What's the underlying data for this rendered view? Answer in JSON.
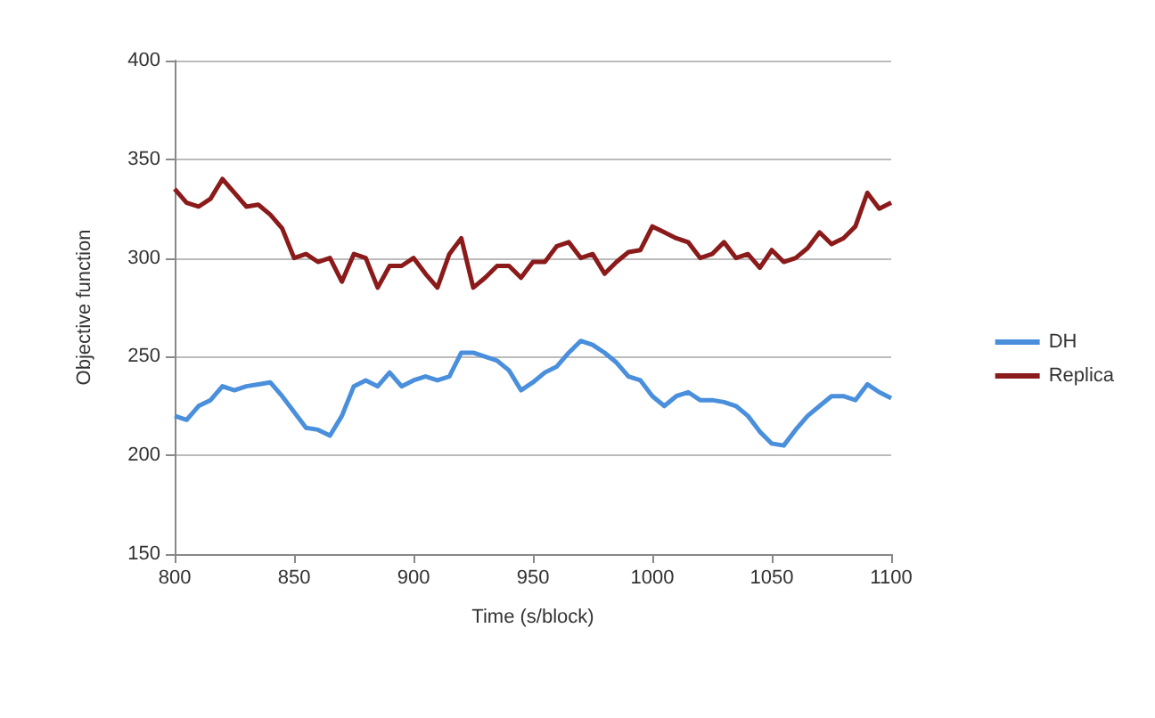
{
  "chart_data": {
    "type": "line",
    "xlabel": "Time (s/block)",
    "ylabel": "Objective function",
    "x": [
      800,
      805,
      810,
      815,
      820,
      825,
      830,
      835,
      840,
      845,
      850,
      855,
      860,
      865,
      870,
      875,
      880,
      885,
      890,
      895,
      900,
      905,
      910,
      915,
      920,
      925,
      930,
      935,
      940,
      945,
      950,
      955,
      960,
      965,
      970,
      975,
      980,
      985,
      990,
      995,
      1000,
      1005,
      1010,
      1015,
      1020,
      1025,
      1030,
      1035,
      1040,
      1045,
      1050,
      1055,
      1060,
      1065,
      1070,
      1075,
      1080,
      1085,
      1090,
      1095,
      1100
    ],
    "series": [
      {
        "name": "DH",
        "color": "#4a8fdc",
        "values": [
          220,
          218,
          225,
          228,
          235,
          233,
          235,
          236,
          237,
          230,
          222,
          214,
          213,
          210,
          220,
          235,
          238,
          235,
          242,
          235,
          238,
          240,
          238,
          240,
          252,
          252,
          250,
          248,
          243,
          233,
          237,
          242,
          245,
          252,
          258,
          256,
          252,
          247,
          240,
          238,
          230,
          225,
          230,
          232,
          228,
          228,
          227,
          225,
          220,
          212,
          206,
          205,
          213,
          220,
          225,
          230,
          230,
          228,
          236,
          232,
          229
        ]
      },
      {
        "name": "Replica",
        "color": "#8b1a1a",
        "values": [
          335,
          328,
          326,
          330,
          340,
          333,
          326,
          327,
          322,
          315,
          300,
          302,
          298,
          300,
          288,
          302,
          300,
          285,
          296,
          296,
          300,
          292,
          285,
          302,
          310,
          285,
          290,
          296,
          296,
          290,
          298,
          298,
          306,
          308,
          300,
          302,
          292,
          298,
          303,
          304,
          316,
          313,
          310,
          308,
          300,
          302,
          308,
          300,
          302,
          295,
          304,
          298,
          300,
          305,
          313,
          307,
          310,
          316,
          333,
          325,
          328
        ]
      }
    ],
    "xlim": [
      800,
      1100
    ],
    "xticks": [
      800,
      850,
      900,
      950,
      1000,
      1050,
      1100
    ],
    "ylim": [
      150,
      400
    ],
    "yticks": [
      150,
      200,
      250,
      300,
      350,
      400
    ],
    "grid": "y",
    "legend": "right",
    "marker": "none",
    "line_style": "solid"
  }
}
